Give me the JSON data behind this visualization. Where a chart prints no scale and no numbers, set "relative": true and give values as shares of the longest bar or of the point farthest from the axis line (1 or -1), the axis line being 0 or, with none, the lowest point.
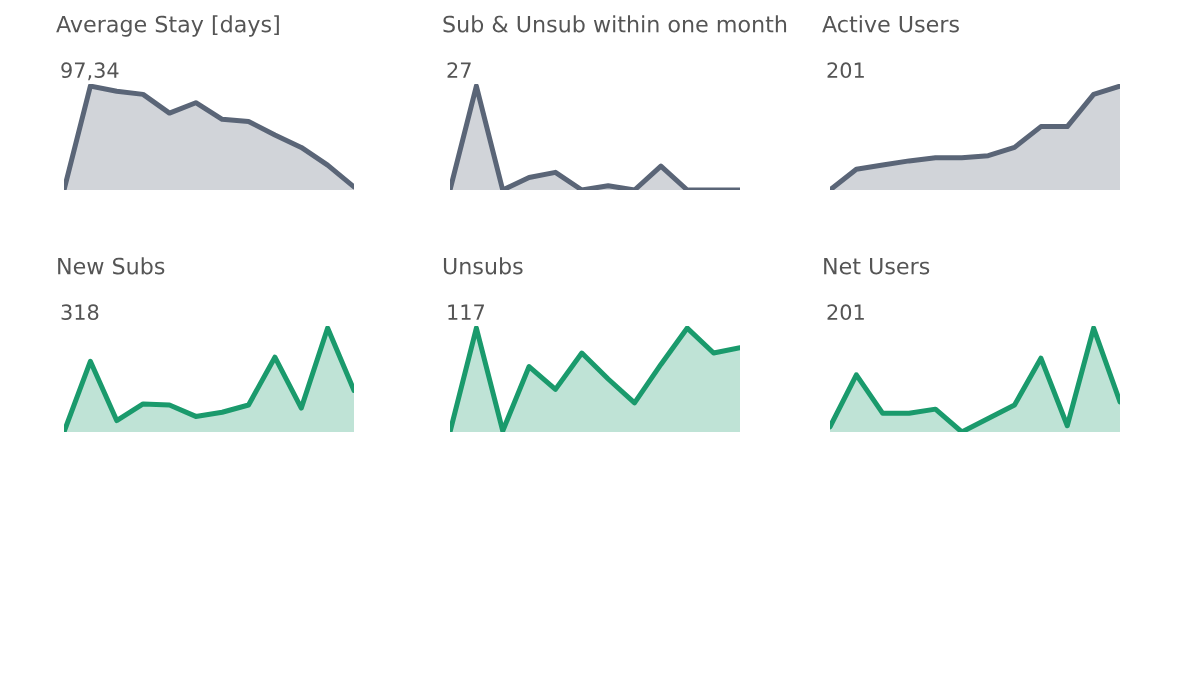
{
  "chart_data": [
    {
      "type": "area",
      "title": "Average Stay [days]",
      "annotations": [
        "97,34"
      ],
      "relative": true,
      "categories": [
        null,
        null,
        null,
        null,
        null,
        null,
        null,
        null,
        null,
        null,
        null,
        null
      ],
      "series": [
        {
          "color": "#5a6577",
          "values": [
            0,
            1,
            0.95,
            0.92,
            0.74,
            0.84,
            0.68,
            0.66,
            0.53,
            0.41,
            0.24,
            0.03
          ]
        }
      ]
    },
    {
      "type": "area",
      "title": "Sub & Unsub within one month",
      "annotations": [
        "27"
      ],
      "relative": true,
      "categories": [
        null,
        null,
        null,
        null,
        null,
        null,
        null,
        null,
        null,
        null,
        null,
        null
      ],
      "series": [
        {
          "color": "#5a6577",
          "values": [
            0,
            1,
            0,
            0.12,
            0.17,
            0,
            0.04,
            0,
            0.23,
            0,
            0,
            0
          ]
        }
      ]
    },
    {
      "type": "area",
      "title": "Active Users",
      "annotations": [
        "201"
      ],
      "relative": true,
      "categories": [
        null,
        null,
        null,
        null,
        null,
        null,
        null,
        null,
        null,
        null,
        null,
        null
      ],
      "series": [
        {
          "color": "#5a6577",
          "values": [
            0,
            0.2,
            0.24,
            0.28,
            0.31,
            0.31,
            0.33,
            0.41,
            0.61,
            0.61,
            0.92,
            1
          ]
        }
      ]
    },
    {
      "type": "area",
      "title": "New Subs",
      "annotations": [
        "318"
      ],
      "relative": true,
      "categories": [
        null,
        null,
        null,
        null,
        null,
        null,
        null,
        null,
        null,
        null,
        null,
        null
      ],
      "series": [
        {
          "color": "#1a9a6c",
          "values": [
            0,
            0.68,
            0.11,
            0.27,
            0.26,
            0.15,
            0.19,
            0.26,
            0.72,
            0.23,
            1,
            0.4
          ]
        }
      ]
    },
    {
      "type": "area",
      "title": "Unsubs",
      "annotations": [
        "117"
      ],
      "relative": true,
      "categories": [
        null,
        null,
        null,
        null,
        null,
        null,
        null,
        null,
        null,
        null,
        null,
        null
      ],
      "series": [
        {
          "color": "#1a9a6c",
          "values": [
            0,
            1,
            0.01,
            0.63,
            0.41,
            0.76,
            0.51,
            0.28,
            0.65,
            1,
            0.76,
            0.81
          ]
        }
      ]
    },
    {
      "type": "area",
      "title": "Net Users",
      "annotations": [
        "201"
      ],
      "relative": true,
      "categories": [
        null,
        null,
        null,
        null,
        null,
        null,
        null,
        null,
        null,
        null,
        null,
        null
      ],
      "series": [
        {
          "color": "#1a9a6c",
          "values": [
            0.05,
            0.55,
            0.18,
            0.18,
            0.22,
            0,
            0.13,
            0.26,
            0.71,
            0.06,
            1,
            0.29
          ]
        }
      ]
    }
  ]
}
